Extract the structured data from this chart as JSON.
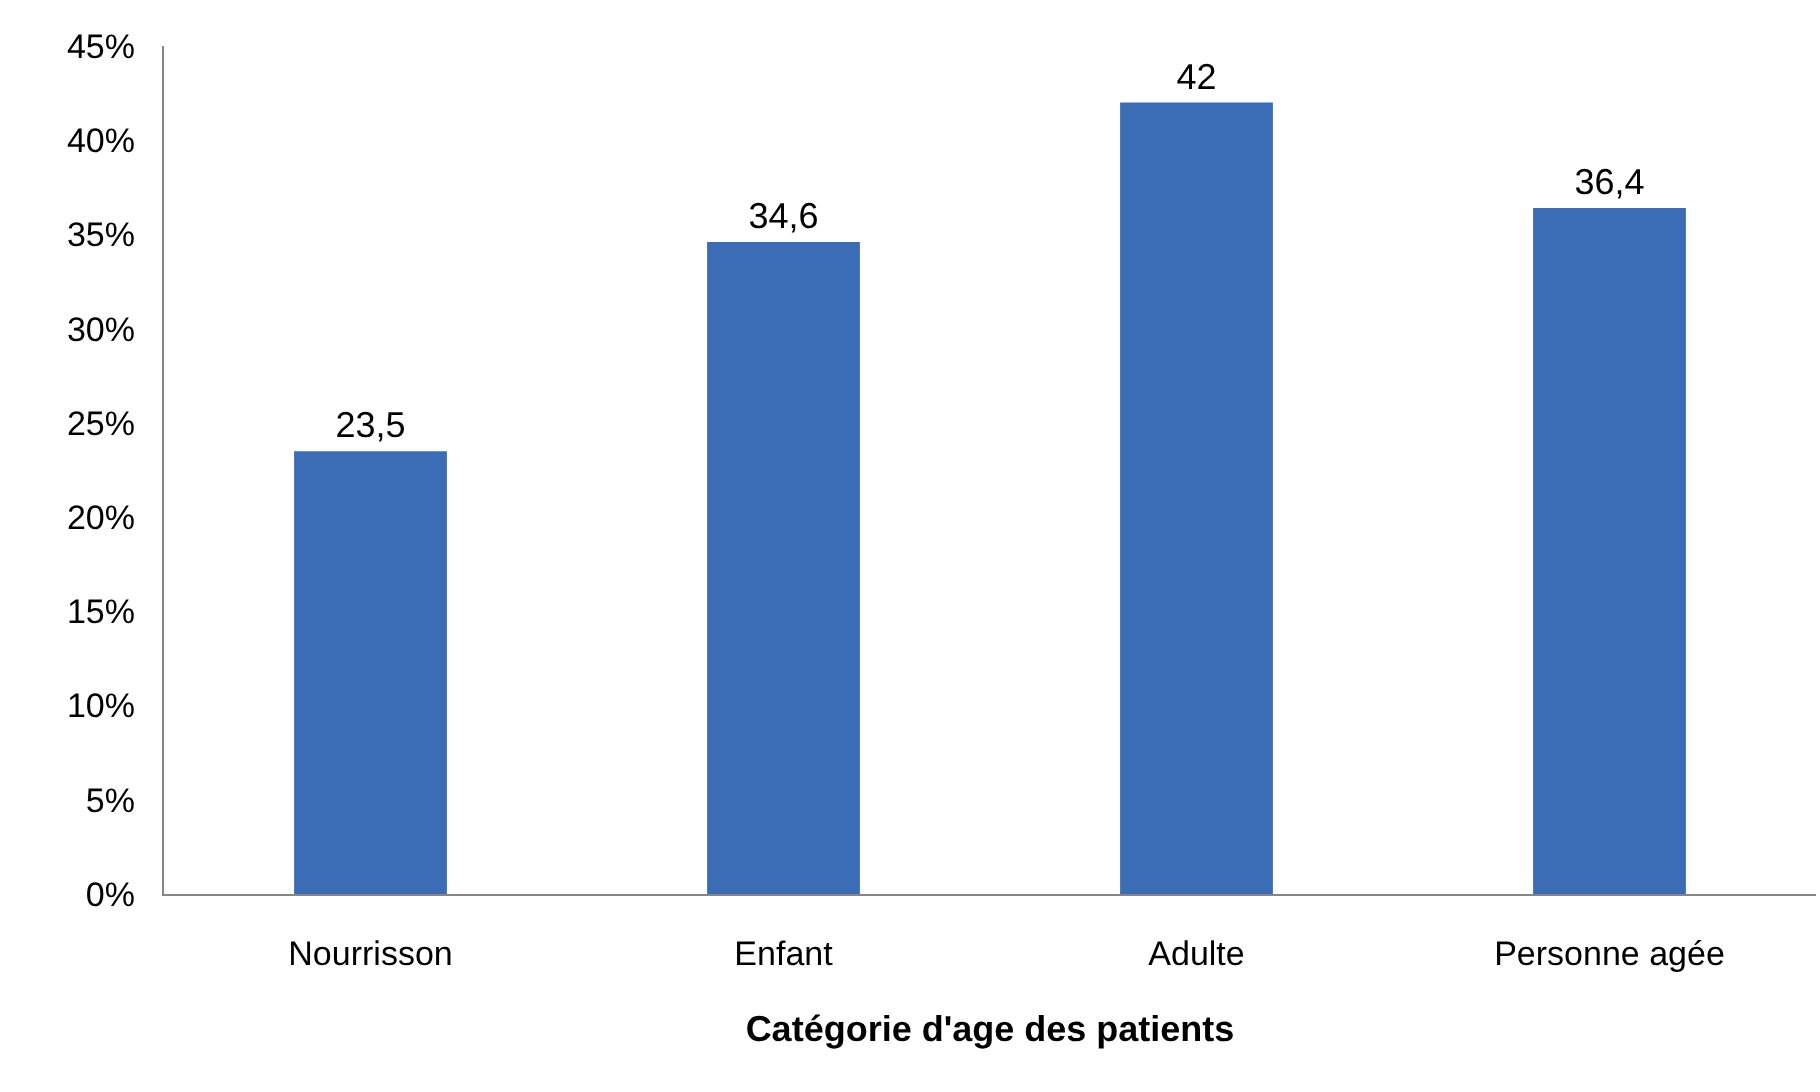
{
  "chart_data": {
    "type": "bar",
    "xlabel": "Catégorie d'age des patients",
    "categories": [
      "Nourrisson",
      "Enfant",
      "Adulte",
      "Personne agée"
    ],
    "values": [
      23.5,
      34.6,
      42,
      36.4
    ],
    "value_labels": [
      "23,5",
      "34,6",
      "42",
      "36,4"
    ],
    "color": "#3a6db5",
    "ylim": [
      0,
      45
    ],
    "yticks": [
      {
        "value": 0,
        "label": "0%"
      },
      {
        "value": 5,
        "label": "5%"
      },
      {
        "value": 10,
        "label": "10%"
      },
      {
        "value": 15,
        "label": "15%"
      },
      {
        "value": 20,
        "label": "20%"
      },
      {
        "value": 25,
        "label": "25%"
      },
      {
        "value": 30,
        "label": "30%"
      },
      {
        "value": 35,
        "label": "35%"
      },
      {
        "value": 40,
        "label": "40%"
      },
      {
        "value": 45,
        "label": "45%"
      }
    ]
  }
}
